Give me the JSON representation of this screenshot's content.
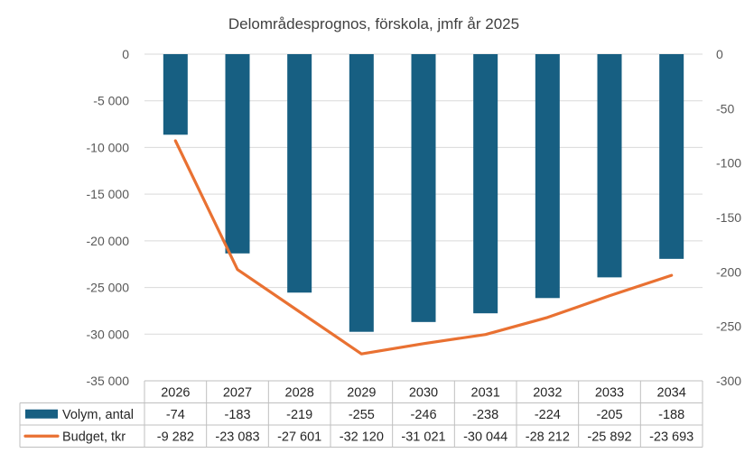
{
  "chart_data": {
    "type": "bar+line",
    "title": "Delområdesprognos, förskola, jmfr år 2025",
    "categories": [
      "2026",
      "2027",
      "2028",
      "2029",
      "2030",
      "2031",
      "2032",
      "2033",
      "2034"
    ],
    "series": [
      {
        "name": "Volym, antal",
        "type": "bar",
        "axis": "right",
        "values": [
          -74,
          -183,
          -219,
          -255,
          -246,
          -238,
          -224,
          -205,
          -188
        ],
        "labels": [
          "-74",
          "-183",
          "-219",
          "-255",
          "-246",
          "-238",
          "-224",
          "-205",
          "-188"
        ],
        "color": "#175F82"
      },
      {
        "name": "Budget, tkr",
        "type": "line",
        "axis": "left",
        "values": [
          -9282,
          -23083,
          -27601,
          -32120,
          -31021,
          -30044,
          -28212,
          -25892,
          -23693
        ],
        "labels": [
          "-9 282",
          "-23 083",
          "-27 601",
          "-32 120",
          "-31 021",
          "-30 044",
          "-28 212",
          "-25 892",
          "-23 693"
        ],
        "color": "#E97132"
      }
    ],
    "y_left": {
      "ylim": [
        -35000,
        0
      ],
      "ticks": [
        0,
        -5000,
        -10000,
        -15000,
        -20000,
        -25000,
        -30000,
        -35000
      ],
      "tick_labels": [
        "0",
        "-5 000",
        "-10 000",
        "-15 000",
        "-20 000",
        "-25 000",
        "-30 000",
        "-35 000"
      ]
    },
    "y_right": {
      "ylim": [
        -300,
        0
      ],
      "ticks": [
        0,
        -50,
        -100,
        -150,
        -200,
        -250,
        -300
      ],
      "tick_labels": [
        "0",
        "-50",
        "-100",
        "-150",
        "-200",
        "-250",
        "-300"
      ]
    },
    "grid": true,
    "legend": "data-table"
  }
}
